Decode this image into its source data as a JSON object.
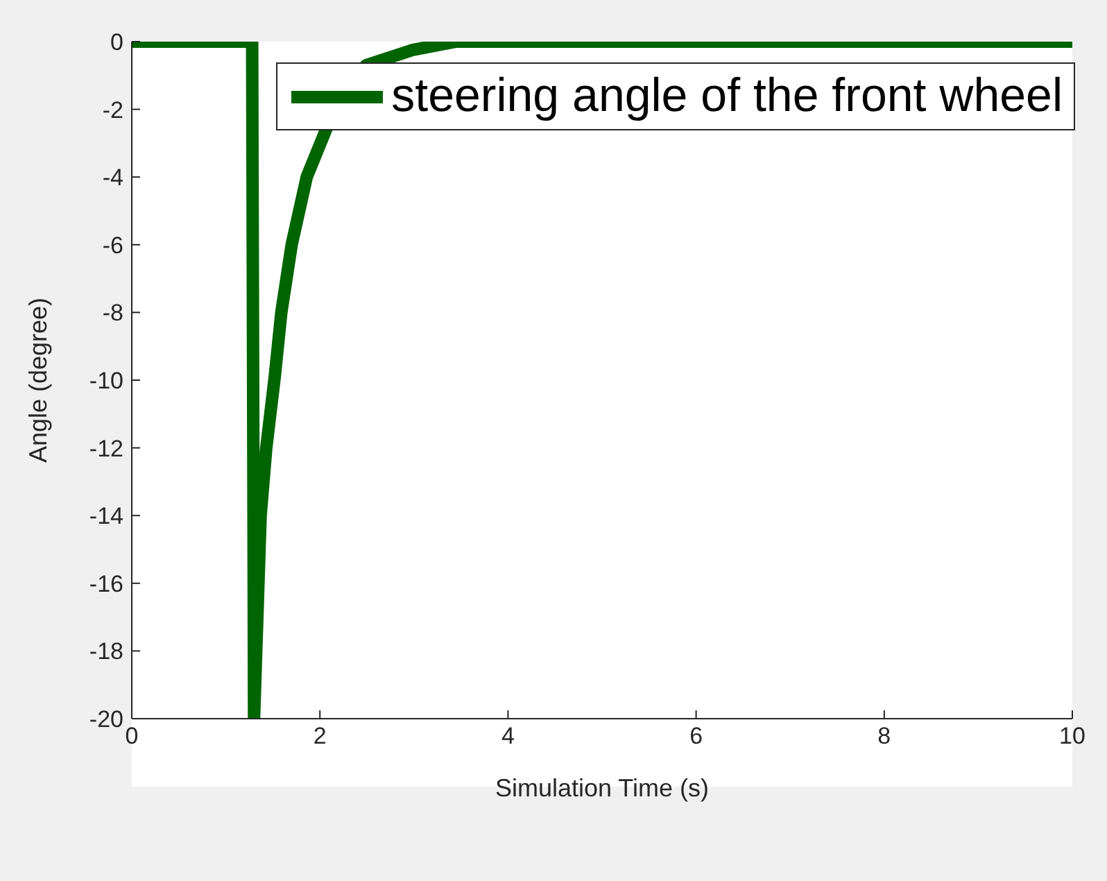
{
  "chart_data": {
    "type": "line",
    "xlabel": "Simulation Time (s)",
    "ylabel": "Angle (degree)",
    "x": [
      0,
      1.28,
      1.3,
      1.37,
      1.43,
      1.52,
      1.59,
      1.7,
      1.86,
      2.08,
      2.49,
      2.98,
      3.45,
      10
    ],
    "series": [
      {
        "name": "steering angle of the front wheel",
        "color": "#006400",
        "values": [
          0,
          0,
          -20,
          -14,
          -12,
          -9.9,
          -8,
          -6,
          -4,
          -2.5,
          -0.7,
          -0.25,
          0,
          0
        ]
      }
    ],
    "xlim": [
      0,
      10
    ],
    "xticks": [
      0,
      2,
      4,
      6,
      8,
      10
    ],
    "ylim": [
      -20,
      0
    ],
    "yticks": [
      -20,
      -18,
      -16,
      -14,
      -12,
      -10,
      -8,
      -6,
      -4,
      -2,
      0
    ],
    "legend": "top right",
    "grid": false,
    "marker": "none",
    "line_style": "solid"
  }
}
